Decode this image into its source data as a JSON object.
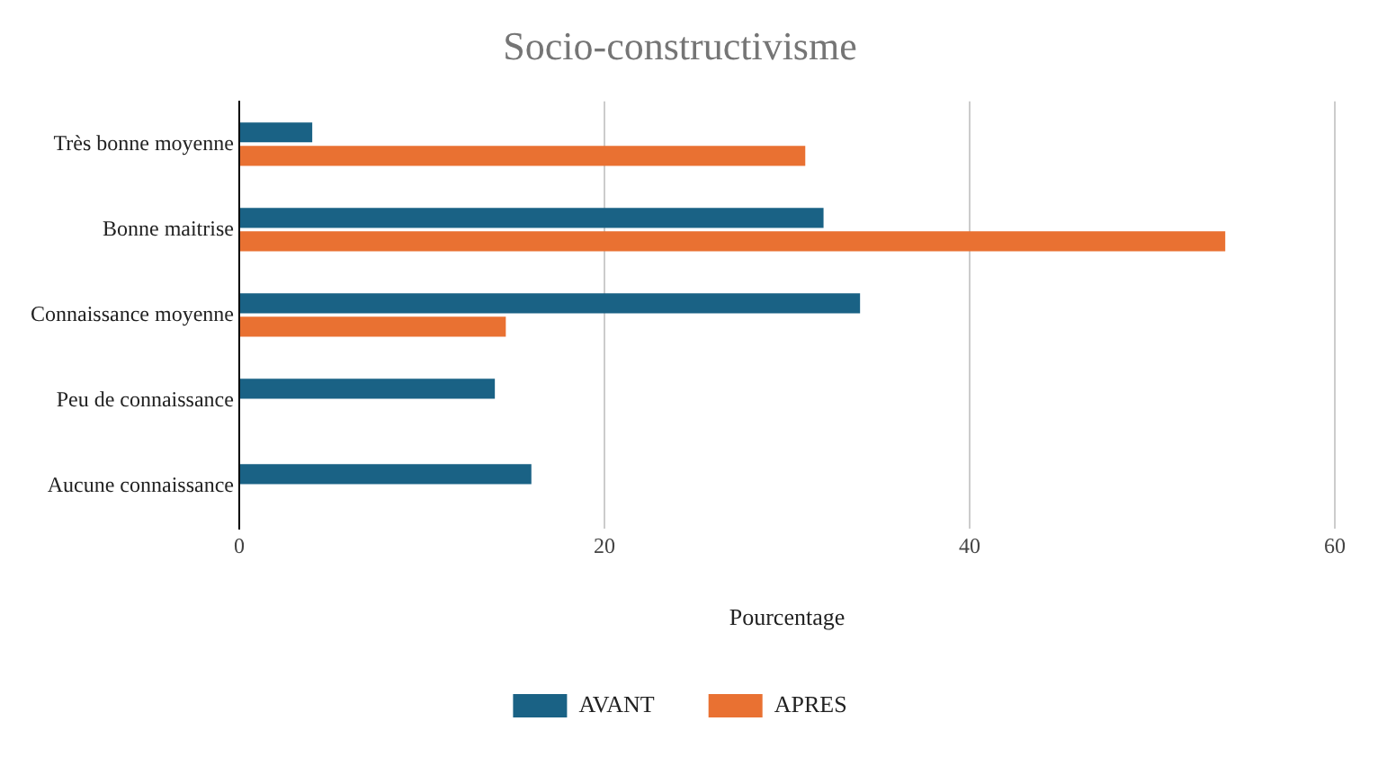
{
  "chart_data": {
    "type": "bar",
    "orientation": "horizontal",
    "title": "Socio-constructivisme",
    "xlabel": "Pourcentage",
    "categories": [
      "Très bonne moyenne",
      "Bonne maitrise",
      "Connaissance moyenne",
      "Peu de connaissance",
      "Aucune connaissance"
    ],
    "series": [
      {
        "name": "AVANT",
        "color": "#1a6285",
        "values": [
          4,
          32,
          34,
          14,
          16
        ]
      },
      {
        "name": "APRES",
        "color": "#e97132",
        "values": [
          31,
          54,
          14.6,
          0,
          0
        ]
      }
    ],
    "xlim": [
      0,
      60
    ],
    "xticks": [
      0,
      20,
      40,
      60
    ],
    "grid": "x",
    "legend": "bottom"
  }
}
